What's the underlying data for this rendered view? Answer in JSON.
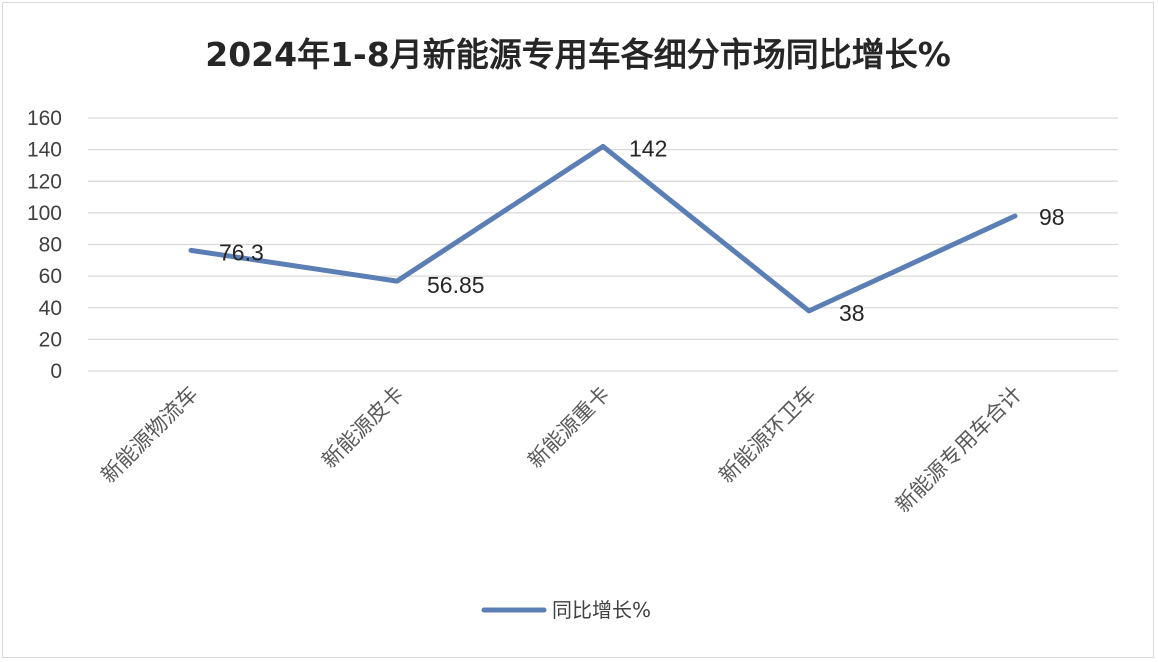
{
  "chart_data": {
    "type": "line",
    "title": "2024年1-8月新能源专用车各细分市场同比增长%",
    "categories": [
      "新能源物流车",
      "新能源皮卡",
      "新能源重卡",
      "新能源环卫车",
      "新能源专用车合计"
    ],
    "series": [
      {
        "name": "同比增长%",
        "values": [
          76.3,
          56.85,
          142,
          38,
          98
        ],
        "labels": [
          "76.3",
          "56.85",
          "142",
          "38",
          "98"
        ]
      }
    ],
    "ylim": [
      0,
      160
    ],
    "yticks": [
      "0",
      "20",
      "40",
      "60",
      "80",
      "100",
      "120",
      "140",
      "160"
    ],
    "grid": true,
    "legend": "bottom",
    "colors": {
      "line": "#5b7fb5",
      "grid": "#d9d9d9"
    }
  }
}
